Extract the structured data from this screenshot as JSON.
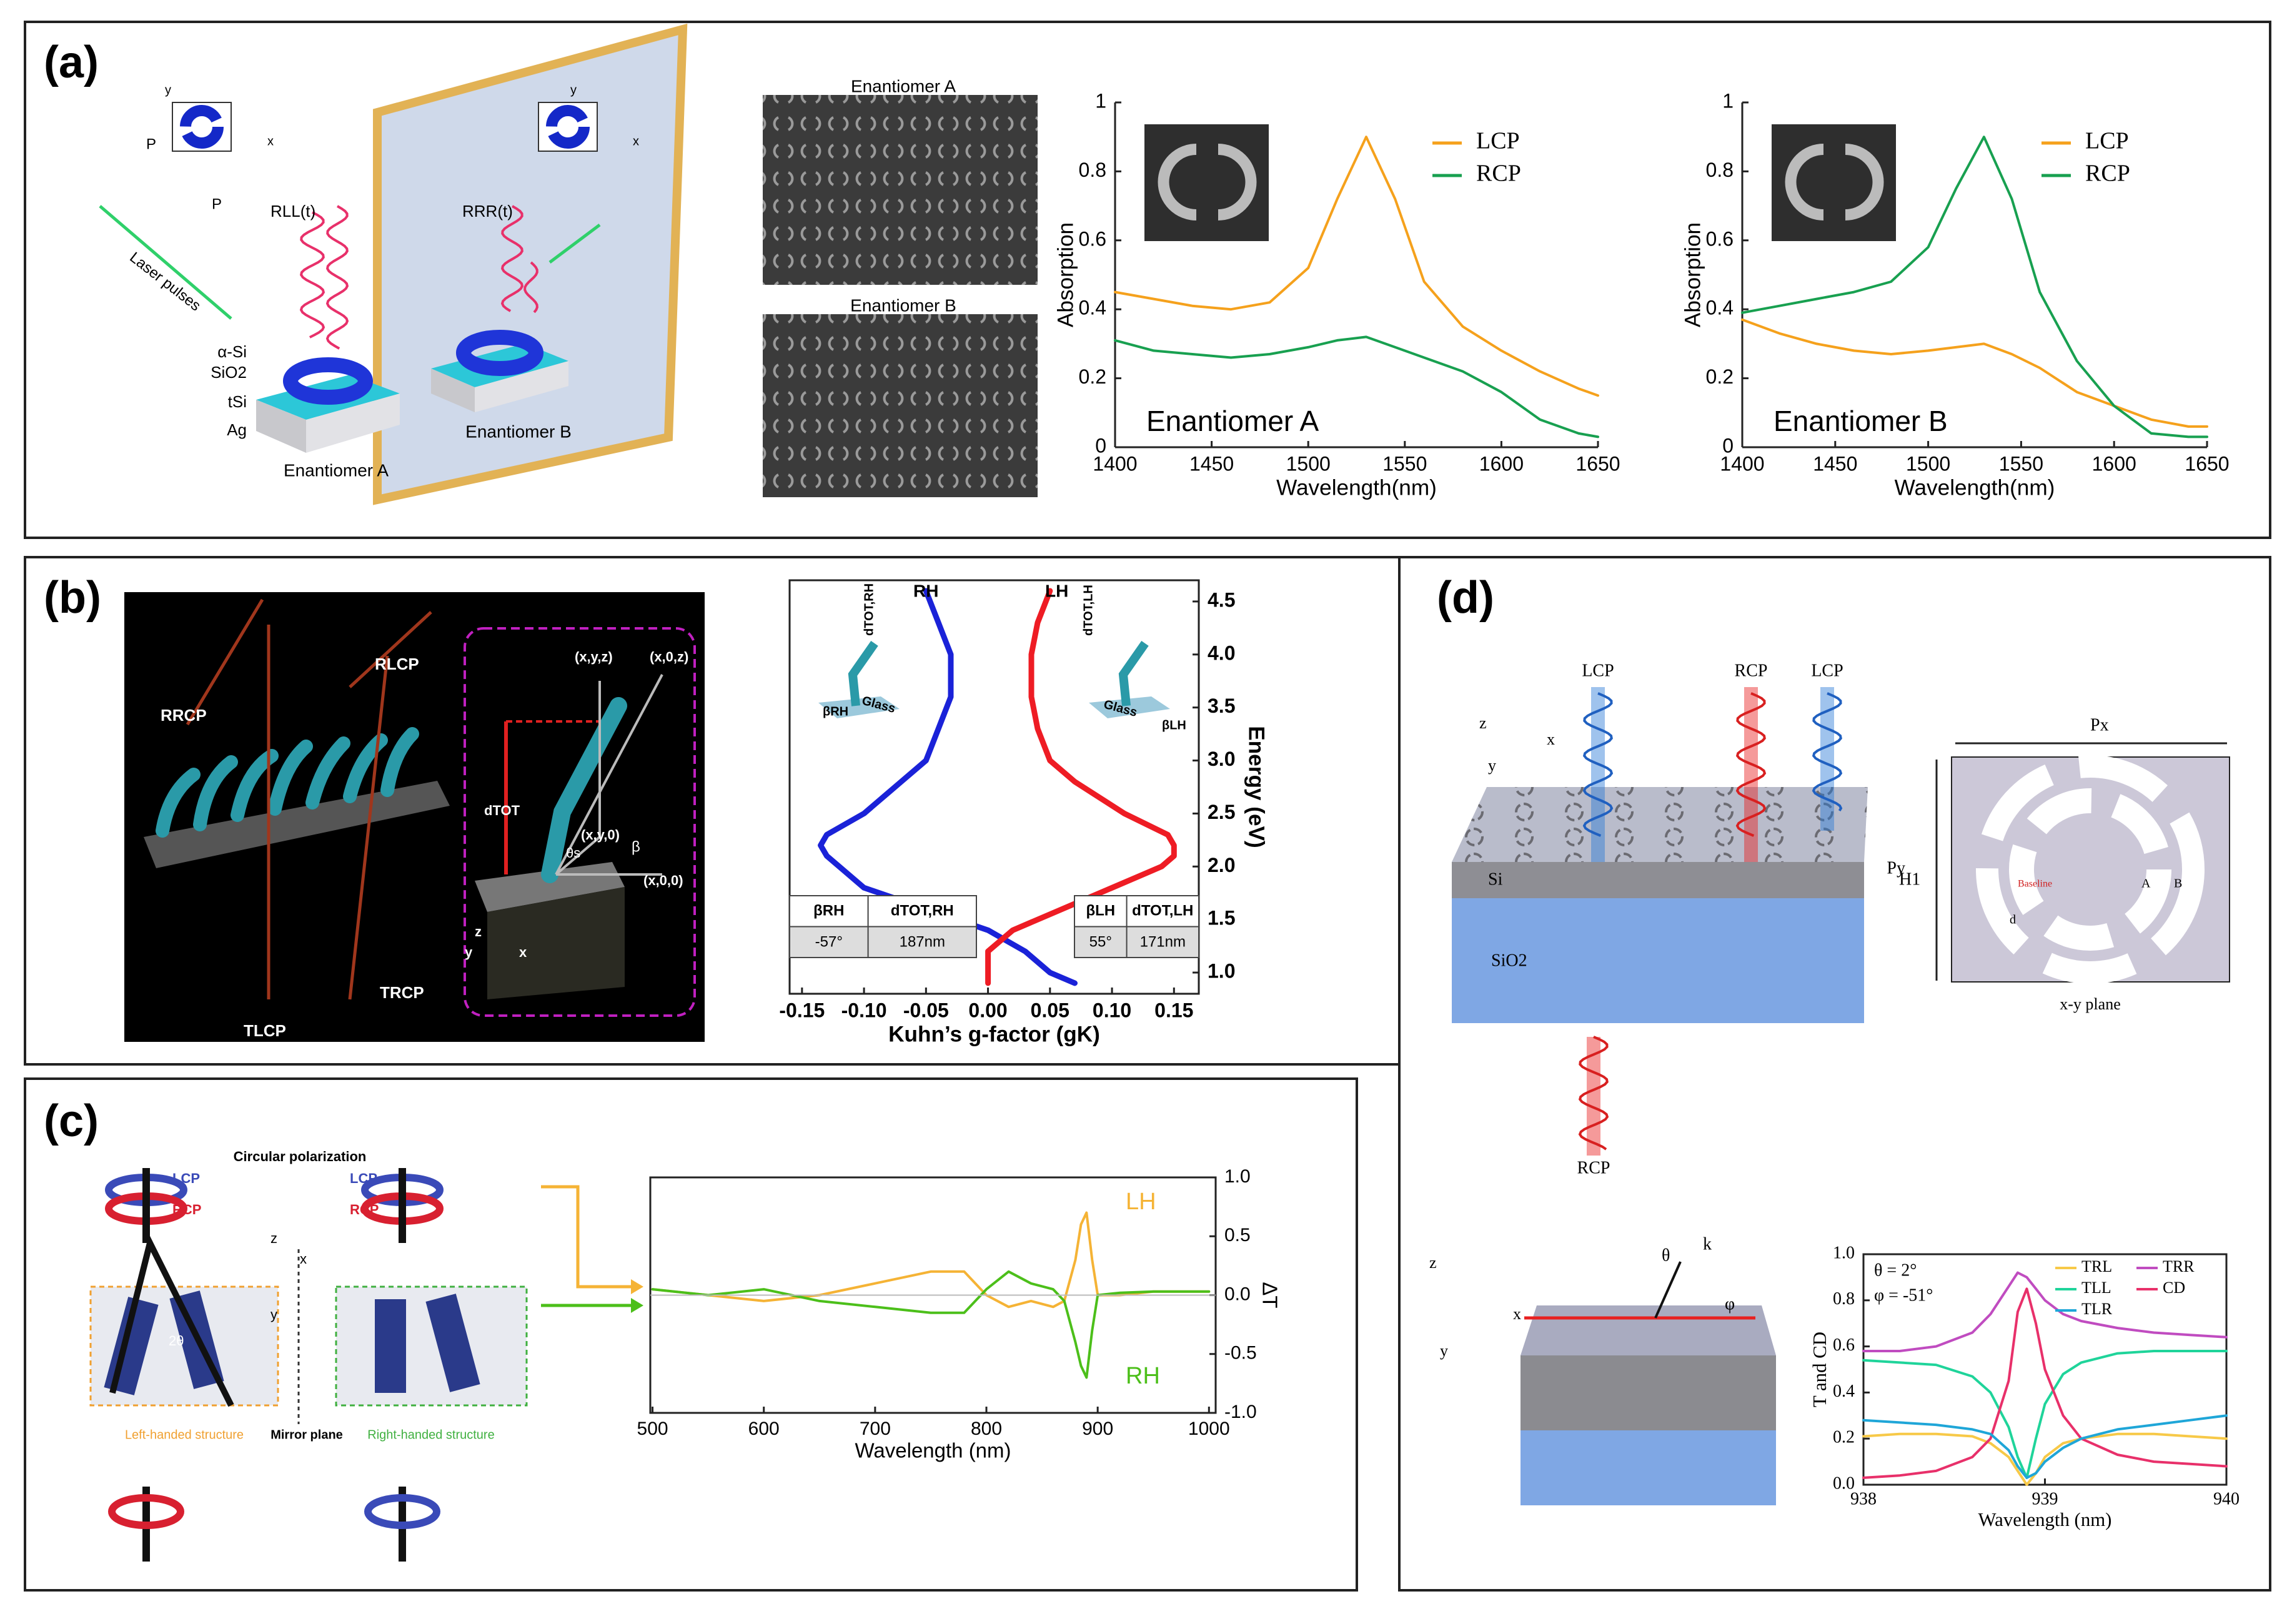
{
  "panel_labels": [
    "(a)",
    "(b)",
    "(c)",
    "(d)"
  ],
  "panel_a": {
    "cell_labels": [
      "P",
      "P",
      "y",
      "x",
      "y",
      "x"
    ],
    "laser": "Laser pulses",
    "reflections": [
      "RLL(t)",
      "RRR(t)"
    ],
    "layers": [
      "α-Si",
      "SiO2",
      "tSi",
      "Ag"
    ],
    "samples": [
      "Enantiomer A",
      "Enantiomer B"
    ],
    "sem": [
      "Enantiomer A",
      "Enantiomer B"
    ]
  },
  "panel_b": {
    "beams": [
      "RRCP",
      "RLCP",
      "TLCP",
      "TRCP"
    ],
    "inset": [
      "(x,y,z)",
      "(x,0,z)",
      "dTOT",
      "(x,y,0)",
      "β",
      "θs",
      "(x,0,0)",
      "z",
      "y",
      "x"
    ]
  },
  "panel_c": {
    "polarization": "Circular polarization",
    "lcp": [
      "LCP",
      "LCP"
    ],
    "rcp": [
      "RCP",
      "RCP"
    ],
    "axes": [
      "z",
      "x",
      "y"
    ],
    "angle": "2θ",
    "structures": [
      "Left-handed structure",
      "Right-handed structure"
    ],
    "mirror": "Mirror plane"
  },
  "panel_d": {
    "beams": [
      "LCP",
      "RCP",
      "LCP",
      "RCP"
    ],
    "axes": [
      "z",
      "x",
      "y"
    ],
    "layers": [
      "Si",
      "SiO2"
    ],
    "thickness": "H1",
    "periods": [
      "Px",
      "Py"
    ],
    "plane": "x-y plane",
    "unit_labels": [
      "d",
      "Baseline",
      "A",
      "B"
    ],
    "cube_axes": [
      "z",
      "x",
      "y"
    ],
    "angles": [
      "θ",
      "k",
      "φ"
    ]
  },
  "chart_data": [
    {
      "type": "line",
      "annotation": "Enantiomer A",
      "x_label": "Wavelength(nm)",
      "y_label": "Absorption",
      "legend": "upper right",
      "x": [
        1400,
        1420,
        1440,
        1460,
        1480,
        1500,
        1515,
        1530,
        1545,
        1560,
        1580,
        1600,
        1620,
        1640,
        1650
      ],
      "series": [
        {
          "name": "LCP",
          "color": "#f5a11c",
          "values": [
            0.45,
            0.43,
            0.41,
            0.4,
            0.42,
            0.52,
            0.72,
            0.9,
            0.72,
            0.48,
            0.35,
            0.28,
            0.22,
            0.17,
            0.15
          ]
        },
        {
          "name": "RCP",
          "color": "#18a050",
          "values": [
            0.31,
            0.28,
            0.27,
            0.26,
            0.27,
            0.29,
            0.31,
            0.32,
            0.29,
            0.26,
            0.22,
            0.16,
            0.08,
            0.04,
            0.03
          ]
        }
      ],
      "xlim": [
        1400,
        1650
      ],
      "ylim": [
        0,
        1
      ],
      "xticks": [
        1400,
        1450,
        1500,
        1550,
        1600,
        1650
      ],
      "yticks": [
        0,
        0.2,
        0.4,
        0.6,
        0.8,
        1
      ]
    },
    {
      "type": "line",
      "annotation": "Enantiomer B",
      "x_label": "Wavelength(nm)",
      "y_label": "Absorption",
      "legend": "upper right",
      "x": [
        1400,
        1420,
        1440,
        1460,
        1480,
        1500,
        1515,
        1530,
        1545,
        1560,
        1580,
        1600,
        1620,
        1640,
        1650
      ],
      "series": [
        {
          "name": "LCP",
          "color": "#f5a11c",
          "values": [
            0.37,
            0.33,
            0.3,
            0.28,
            0.27,
            0.28,
            0.29,
            0.3,
            0.27,
            0.23,
            0.16,
            0.12,
            0.08,
            0.06,
            0.06
          ]
        },
        {
          "name": "RCP",
          "color": "#18a050",
          "values": [
            0.39,
            0.41,
            0.43,
            0.45,
            0.48,
            0.58,
            0.75,
            0.9,
            0.72,
            0.45,
            0.25,
            0.12,
            0.04,
            0.03,
            0.03
          ]
        }
      ],
      "xlim": [
        1400,
        1650
      ],
      "ylim": [
        0,
        1
      ],
      "xticks": [
        1400,
        1450,
        1500,
        1550,
        1600,
        1650
      ],
      "yticks": [
        0,
        0.2,
        0.4,
        0.6,
        0.8,
        1
      ]
    },
    {
      "type": "line",
      "x_label": "Kuhn’s g-factor (gK)",
      "y_label": "Energy (eV)",
      "y_axis": "right",
      "y": [
        0.9,
        1.0,
        1.2,
        1.4,
        1.6,
        1.8,
        2.0,
        2.1,
        2.2,
        2.3,
        2.5,
        2.8,
        3.0,
        3.3,
        3.6,
        4.0,
        4.3,
        4.6
      ],
      "series": [
        {
          "name": "RH",
          "color": "#1a22d8",
          "values": [
            0.07,
            0.05,
            0.03,
            0.0,
            -0.05,
            -0.1,
            -0.12,
            -0.13,
            -0.135,
            -0.13,
            -0.1,
            -0.07,
            -0.05,
            -0.04,
            -0.03,
            -0.03,
            -0.04,
            -0.05
          ]
        },
        {
          "name": "LH",
          "color": "#ee1c24",
          "values": [
            0.0,
            0.0,
            0.0,
            0.02,
            0.06,
            0.1,
            0.14,
            0.15,
            0.15,
            0.145,
            0.11,
            0.07,
            0.05,
            0.04,
            0.035,
            0.035,
            0.04,
            0.05
          ]
        }
      ],
      "tables": [
        {
          "header": [
            "βRH",
            "dTOT,RH"
          ],
          "row": [
            "-57°",
            "187nm"
          ]
        },
        {
          "header": [
            "βLH",
            "dTOT,LH"
          ],
          "row": [
            "55°",
            "171nm"
          ]
        }
      ],
      "inset_labels": [
        "dTOT,RH",
        "dTOT,LH",
        "βRH",
        "βLH",
        "Glass",
        "Glass"
      ],
      "xlim": [
        -0.16,
        0.17
      ],
      "ylim": [
        0.8,
        4.7
      ],
      "xticks": [
        {
          "value": -0.15,
          "label": "-0.15"
        },
        {
          "value": -0.1,
          "label": "-0.10"
        },
        {
          "value": -0.05,
          "label": "-0.05"
        },
        {
          "value": 0,
          "label": "0.00"
        },
        {
          "value": 0.05,
          "label": "0.05"
        },
        {
          "value": 0.1,
          "label": "0.10"
        },
        {
          "value": 0.15,
          "label": "0.15"
        }
      ],
      "yticks": [
        {
          "value": 1,
          "label": "1.0"
        },
        1.5,
        {
          "value": 2,
          "label": "2.0"
        },
        2.5,
        {
          "value": 3,
          "label": "3.0"
        },
        3.5,
        {
          "value": 4,
          "label": "4.0"
        },
        4.5
      ]
    },
    {
      "type": "line",
      "x_label": "Wavelength (nm)",
      "y_label": "ΔT",
      "y_axis": "right",
      "x": [
        500,
        550,
        600,
        650,
        700,
        750,
        780,
        800,
        820,
        840,
        860,
        870,
        880,
        885,
        890,
        895,
        900,
        920,
        950,
        1000
      ],
      "series": [
        {
          "name": "LH",
          "color": "#f5b335",
          "values": [
            0.05,
            0.0,
            -0.05,
            0.0,
            0.1,
            0.2,
            0.2,
            0.0,
            -0.1,
            -0.05,
            -0.1,
            -0.05,
            0.3,
            0.6,
            0.7,
            0.3,
            0.0,
            0.0,
            0.03,
            0.03
          ]
        },
        {
          "name": "RH",
          "color": "#4cbf1a",
          "values": [
            0.05,
            0.0,
            0.05,
            -0.05,
            -0.1,
            -0.15,
            -0.15,
            0.05,
            0.2,
            0.1,
            0.05,
            -0.05,
            -0.4,
            -0.6,
            -0.7,
            -0.3,
            0.0,
            0.02,
            0.03,
            0.03
          ]
        }
      ],
      "xlim": [
        498,
        1006
      ],
      "ylim": [
        -1,
        1
      ],
      "xticks": [
        500,
        600,
        700,
        800,
        900,
        1000
      ],
      "yticks": [
        {
          "value": -1,
          "label": "-1.0"
        },
        -0.5,
        {
          "value": 0,
          "label": "0.0"
        },
        0.5,
        {
          "value": 1,
          "label": "1.0"
        }
      ]
    },
    {
      "type": "line",
      "x_label": "Wavelength (nm)",
      "y_label": "T and CD",
      "legend": "upper right",
      "annotations": [
        "θ = 2°",
        "φ = -51°"
      ],
      "x": [
        938,
        938.2,
        938.4,
        938.6,
        938.7,
        938.8,
        938.85,
        938.9,
        938.95,
        939,
        939.1,
        939.2,
        939.4,
        939.6,
        939.8,
        940
      ],
      "series": [
        {
          "name": "TRL",
          "color": "#f7c948",
          "values": [
            0.21,
            0.22,
            0.22,
            0.21,
            0.18,
            0.12,
            0.06,
            0.0,
            0.05,
            0.12,
            0.18,
            0.2,
            0.22,
            0.22,
            0.21,
            0.2
          ]
        },
        {
          "name": "TRR",
          "color": "#c04cc0",
          "values": [
            0.58,
            0.58,
            0.6,
            0.66,
            0.74,
            0.86,
            0.92,
            0.9,
            0.85,
            0.8,
            0.74,
            0.71,
            0.68,
            0.66,
            0.65,
            0.64
          ]
        },
        {
          "name": "TLL",
          "color": "#1fd49a",
          "values": [
            0.54,
            0.53,
            0.52,
            0.47,
            0.4,
            0.25,
            0.12,
            0.03,
            0.2,
            0.35,
            0.48,
            0.53,
            0.57,
            0.58,
            0.58,
            0.58
          ]
        },
        {
          "name": "CD",
          "color": "#e8306a",
          "values": [
            0.03,
            0.04,
            0.06,
            0.12,
            0.2,
            0.45,
            0.75,
            0.85,
            0.7,
            0.5,
            0.3,
            0.2,
            0.13,
            0.1,
            0.09,
            0.08
          ]
        },
        {
          "name": "TLR",
          "color": "#1fa6d8",
          "values": [
            0.28,
            0.27,
            0.26,
            0.24,
            0.22,
            0.15,
            0.08,
            0.03,
            0.05,
            0.1,
            0.16,
            0.2,
            0.24,
            0.26,
            0.28,
            0.3
          ]
        }
      ],
      "xlim": [
        938,
        940
      ],
      "ylim": [
        0,
        1
      ],
      "xticks": [
        938,
        939,
        940
      ],
      "yticks": [
        {
          "value": 0,
          "label": "0.0"
        },
        0.2,
        0.4,
        0.6,
        0.8,
        {
          "value": 1,
          "label": "1.0"
        }
      ]
    }
  ]
}
